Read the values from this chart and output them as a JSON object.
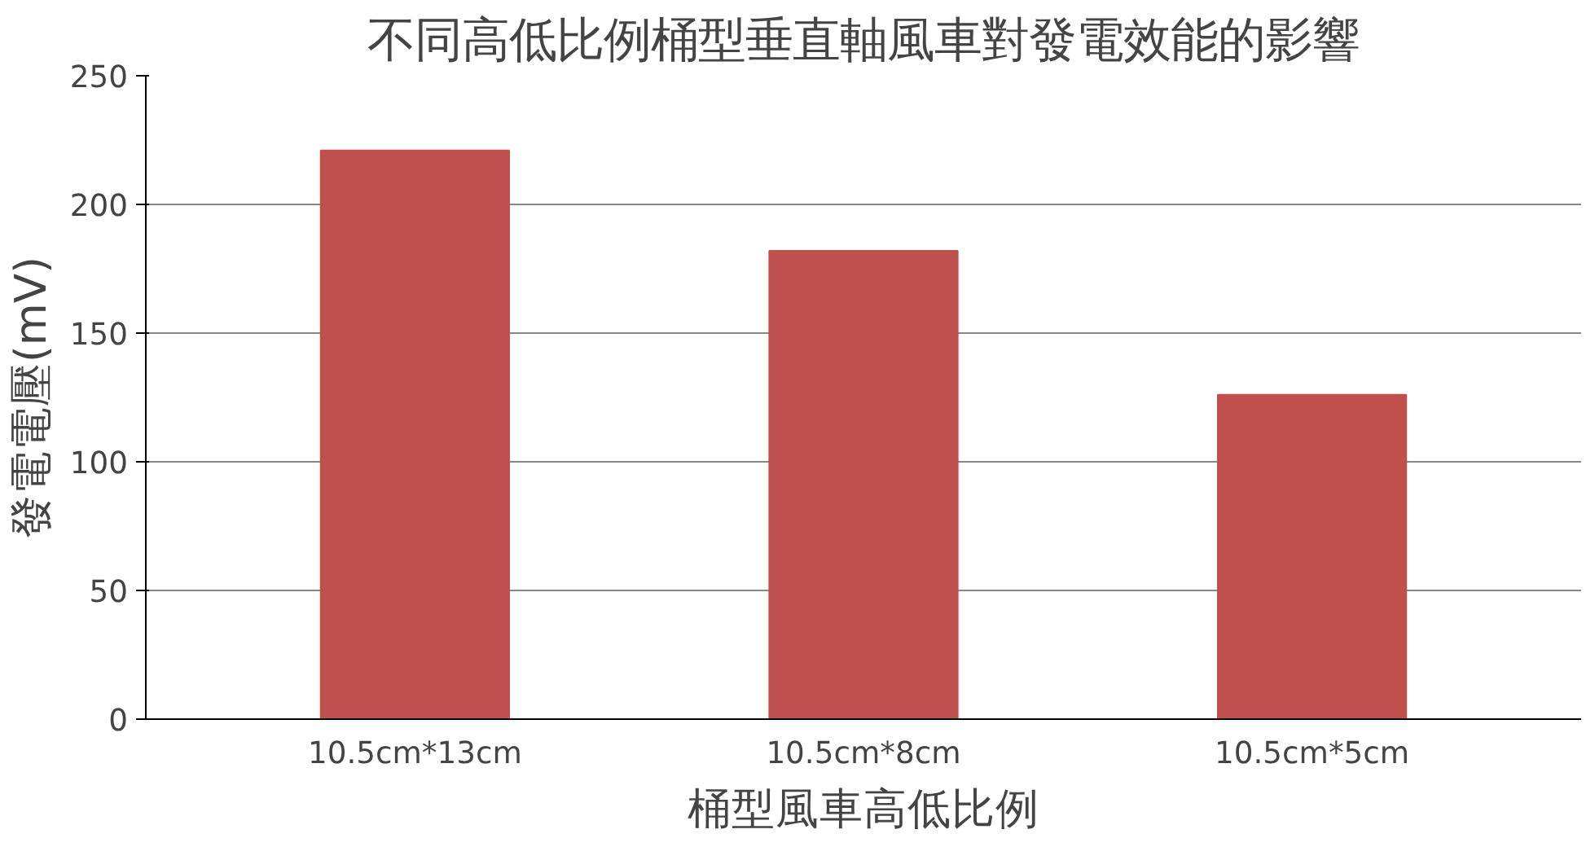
{
  "chart_data": {
    "type": "bar",
    "title": "不同高低比例桶型垂直軸風車對發電效能的影響",
    "xlabel": "桶型風車高低比例",
    "ylabel": "發電電壓(mV)",
    "categories": [
      "10.5cm*13cm",
      "10.5cm*8cm",
      "10.5cm*5cm"
    ],
    "values": [
      221,
      182,
      126
    ],
    "color": "#c0504d",
    "ylim": [
      0,
      250
    ],
    "yticks": [
      0,
      50,
      100,
      150,
      200,
      250
    ],
    "grid": "y"
  }
}
